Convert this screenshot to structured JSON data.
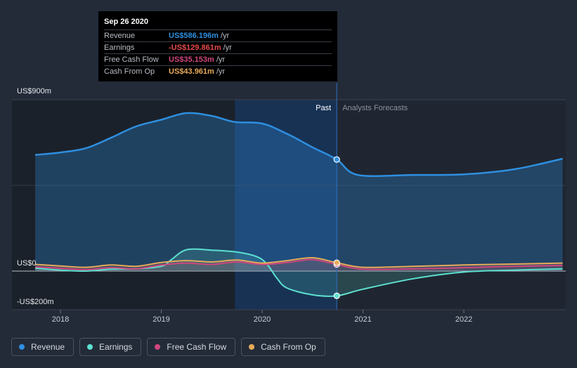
{
  "chart_data": {
    "type": "line",
    "title": "",
    "y_axis": {
      "min": -200,
      "max": 900,
      "unit": "US$m",
      "labels": [
        "US$900m",
        "US$0",
        "-US$200m"
      ]
    },
    "x_axis": {
      "min": 2017.55,
      "max": 2022.98,
      "ticks": [
        2018,
        2019,
        2020,
        2021,
        2022
      ],
      "tick_labels": [
        "2018",
        "2019",
        "2020",
        "2021",
        "2022"
      ]
    },
    "past_label": "Past",
    "forecast_label": "Analysts Forecasts",
    "split_x": 2020.74,
    "highlight_range": [
      2019.73,
      2020.74
    ],
    "series": [
      {
        "name": "Revenue",
        "color": "#2e8fe0",
        "points": [
          [
            2017.75,
            610
          ],
          [
            2018.0,
            623
          ],
          [
            2018.25,
            645
          ],
          [
            2018.5,
            700
          ],
          [
            2018.75,
            760
          ],
          [
            2019.0,
            795
          ],
          [
            2019.25,
            830
          ],
          [
            2019.5,
            815
          ],
          [
            2019.73,
            783
          ],
          [
            2020.0,
            775
          ],
          [
            2020.25,
            720
          ],
          [
            2020.5,
            650
          ],
          [
            2020.74,
            586.2
          ],
          [
            2020.95,
            505
          ],
          [
            2021.5,
            505
          ],
          [
            2022.0,
            508
          ],
          [
            2022.5,
            535
          ],
          [
            2022.98,
            590
          ]
        ]
      },
      {
        "name": "Earnings",
        "color": "#5ce0d0",
        "points": [
          [
            2017.75,
            15
          ],
          [
            2018.0,
            5
          ],
          [
            2018.25,
            0
          ],
          [
            2018.5,
            10
          ],
          [
            2018.75,
            12
          ],
          [
            2019.0,
            25
          ],
          [
            2019.1,
            60
          ],
          [
            2019.25,
            112
          ],
          [
            2019.5,
            110
          ],
          [
            2019.75,
            100
          ],
          [
            2019.95,
            75
          ],
          [
            2020.05,
            35
          ],
          [
            2020.15,
            -40
          ],
          [
            2020.25,
            -90
          ],
          [
            2020.5,
            -125
          ],
          [
            2020.74,
            -129.9
          ],
          [
            2021.0,
            -95
          ],
          [
            2021.5,
            -40
          ],
          [
            2022.0,
            -5
          ],
          [
            2022.5,
            5
          ],
          [
            2022.98,
            12
          ]
        ]
      },
      {
        "name": "Free Cash Flow",
        "color": "#d0467e",
        "points": [
          [
            2017.75,
            22
          ],
          [
            2018.0,
            15
          ],
          [
            2018.25,
            8
          ],
          [
            2018.5,
            18
          ],
          [
            2018.75,
            12
          ],
          [
            2019.0,
            32
          ],
          [
            2019.25,
            42
          ],
          [
            2019.5,
            35
          ],
          [
            2019.75,
            48
          ],
          [
            2020.0,
            35
          ],
          [
            2020.25,
            45
          ],
          [
            2020.5,
            60
          ],
          [
            2020.74,
            35.2
          ],
          [
            2021.0,
            10
          ],
          [
            2021.5,
            12
          ],
          [
            2022.0,
            18
          ],
          [
            2022.5,
            25
          ],
          [
            2022.98,
            30
          ]
        ]
      },
      {
        "name": "Cash From Op",
        "color": "#e8aa5a",
        "points": [
          [
            2017.75,
            35
          ],
          [
            2018.0,
            27
          ],
          [
            2018.25,
            20
          ],
          [
            2018.5,
            32
          ],
          [
            2018.75,
            25
          ],
          [
            2019.0,
            45
          ],
          [
            2019.25,
            55
          ],
          [
            2019.5,
            48
          ],
          [
            2019.75,
            58
          ],
          [
            2020.0,
            42
          ],
          [
            2020.25,
            55
          ],
          [
            2020.5,
            70
          ],
          [
            2020.74,
            44.0
          ],
          [
            2021.0,
            20
          ],
          [
            2021.5,
            25
          ],
          [
            2022.0,
            32
          ],
          [
            2022.5,
            37
          ],
          [
            2022.98,
            42
          ]
        ]
      }
    ]
  },
  "tooltip": {
    "date": "Sep 26 2020",
    "rows": [
      {
        "label": "Revenue",
        "value": "US$586.196m",
        "unit": "/yr",
        "color": "#2e8fe0"
      },
      {
        "label": "Earnings",
        "value": "-US$129.861m",
        "unit": "/yr",
        "color": "#e84a4a"
      },
      {
        "label": "Free Cash Flow",
        "value": "US$35.153m",
        "unit": "/yr",
        "color": "#d0467e"
      },
      {
        "label": "Cash From Op",
        "value": "US$43.961m",
        "unit": "/yr",
        "color": "#e8aa5a"
      }
    ]
  },
  "legend": [
    {
      "label": "Revenue",
      "color": "#2e8fe0"
    },
    {
      "label": "Earnings",
      "color": "#5ce0d0"
    },
    {
      "label": "Free Cash Flow",
      "color": "#d0467e"
    },
    {
      "label": "Cash From Op",
      "color": "#e8aa5a"
    }
  ]
}
